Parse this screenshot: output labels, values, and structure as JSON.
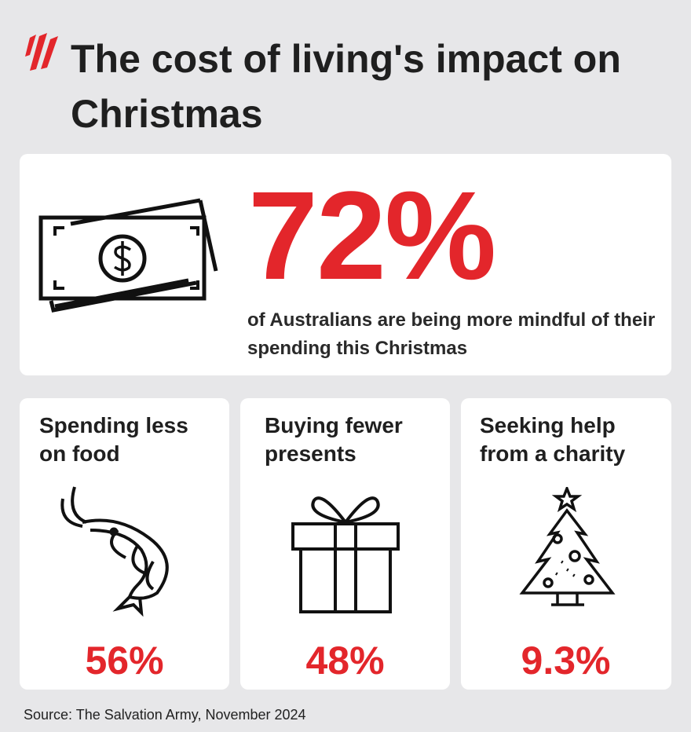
{
  "header": {
    "title": "The cost of living's impact on Christmas"
  },
  "headline": {
    "stat": "72%",
    "text": "of Australians are being more mindful of their spending this Christmas"
  },
  "cards": [
    {
      "title": "Spending less on food",
      "stat": "56%"
    },
    {
      "title": "Buying fewer presents",
      "stat": "48%"
    },
    {
      "title": "Seeking help from a charity",
      "stat": "9.3%"
    }
  ],
  "footer": {
    "source": "Source: The Salvation Army, November 2024"
  }
}
